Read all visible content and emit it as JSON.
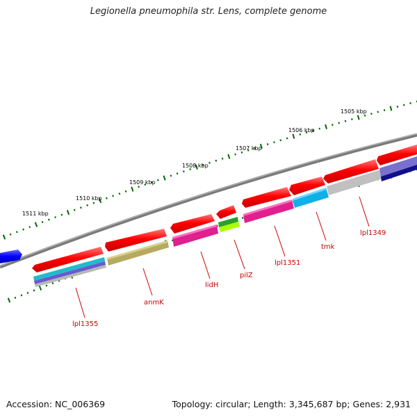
{
  "title": "Legionella pneumophila str. Lens, complete genome",
  "footer": {
    "accession": "Accession: NC_006369",
    "topology": "Topology: circular; Length: 3,345,687 bp; Genes: 2,931"
  },
  "colors": {
    "backbone": "#888888",
    "tick": "#006600",
    "gene_label": "#cc0000",
    "forward_gene": "#ff0000"
  },
  "kbp_labels": [
    "1505 kbp",
    "1506 kbp",
    "1507 kbp",
    "1508 kbp",
    "1509 kbp",
    "1510 kbp",
    "1511 kbp"
  ],
  "gene_labels": [
    "lpl1349",
    "tmk",
    "lpl1351",
    "pilZ",
    "lidH",
    "anmK",
    "lpl1355"
  ]
}
